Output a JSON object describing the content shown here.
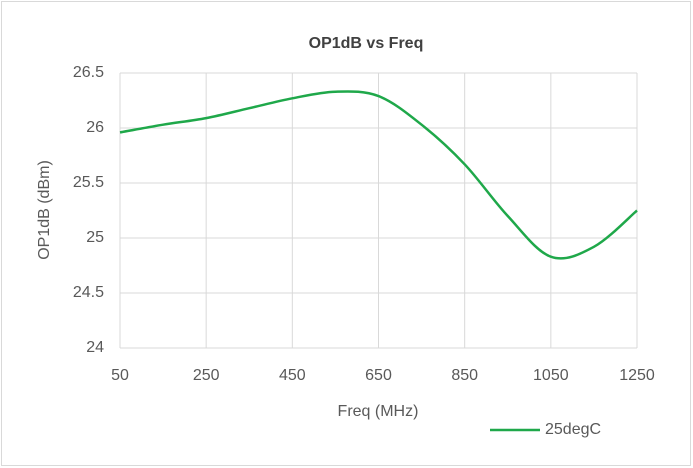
{
  "chart_data": {
    "type": "line",
    "title": "OP1dB vs Freq",
    "x_label": "Freq (MHz)",
    "y_label": "OP1dB (dBm)",
    "x": [
      50,
      150,
      250,
      350,
      450,
      550,
      650,
      750,
      850,
      950,
      1050,
      1150,
      1250
    ],
    "series": [
      {
        "name": "25degC",
        "color": "#1fa84a",
        "values": [
          25.96,
          26.03,
          26.09,
          26.18,
          26.27,
          26.33,
          26.29,
          26.03,
          25.67,
          25.2,
          24.83,
          24.92,
          25.25
        ]
      }
    ],
    "xlim": [
      50,
      1250
    ],
    "xticks": [
      50,
      250,
      450,
      650,
      850,
      1050,
      1250
    ],
    "ylim": [
      24,
      26.5
    ],
    "yticks": [
      24,
      24.5,
      25,
      25.5,
      26,
      26.5
    ],
    "grid": true,
    "smooth": true,
    "legend": "bottom-right"
  }
}
